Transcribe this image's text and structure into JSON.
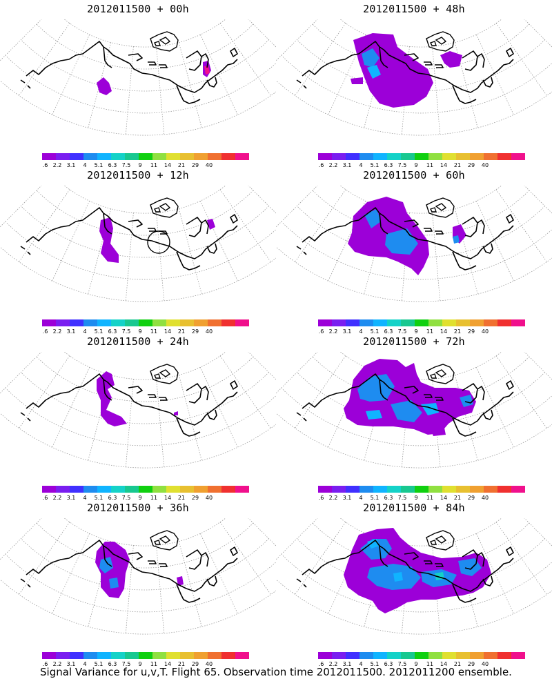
{
  "panels": [
    {
      "title": "2012011500 + 00h"
    },
    {
      "title": "2012011500 + 48h"
    },
    {
      "title": "2012011500 + 12h"
    },
    {
      "title": "2012011500 + 60h"
    },
    {
      "title": "2012011500 + 24h"
    },
    {
      "title": "2012011500 + 72h"
    },
    {
      "title": "2012011500 + 36h"
    },
    {
      "title": "2012011500 + 84h"
    }
  ],
  "colorbar": {
    "labels": [
      "1.6",
      "2.2",
      "3.1",
      "4",
      "5.1",
      "6.3",
      "7.5",
      "9",
      "11",
      "14",
      "21",
      "29",
      "40"
    ],
    "colors": [
      "#9c00d8",
      "#7a1ef0",
      "#4030ff",
      "#1e8cf0",
      "#10b4ff",
      "#14d2c8",
      "#18c890",
      "#10d010",
      "#90e040",
      "#e0e030",
      "#e8c030",
      "#f0a030",
      "#f07030",
      "#f03030",
      "#f0108c"
    ]
  },
  "caption": "Signal Variance for u,v,T. Flight 65. Observation time 2012011500. 2012011200 ensemble."
}
